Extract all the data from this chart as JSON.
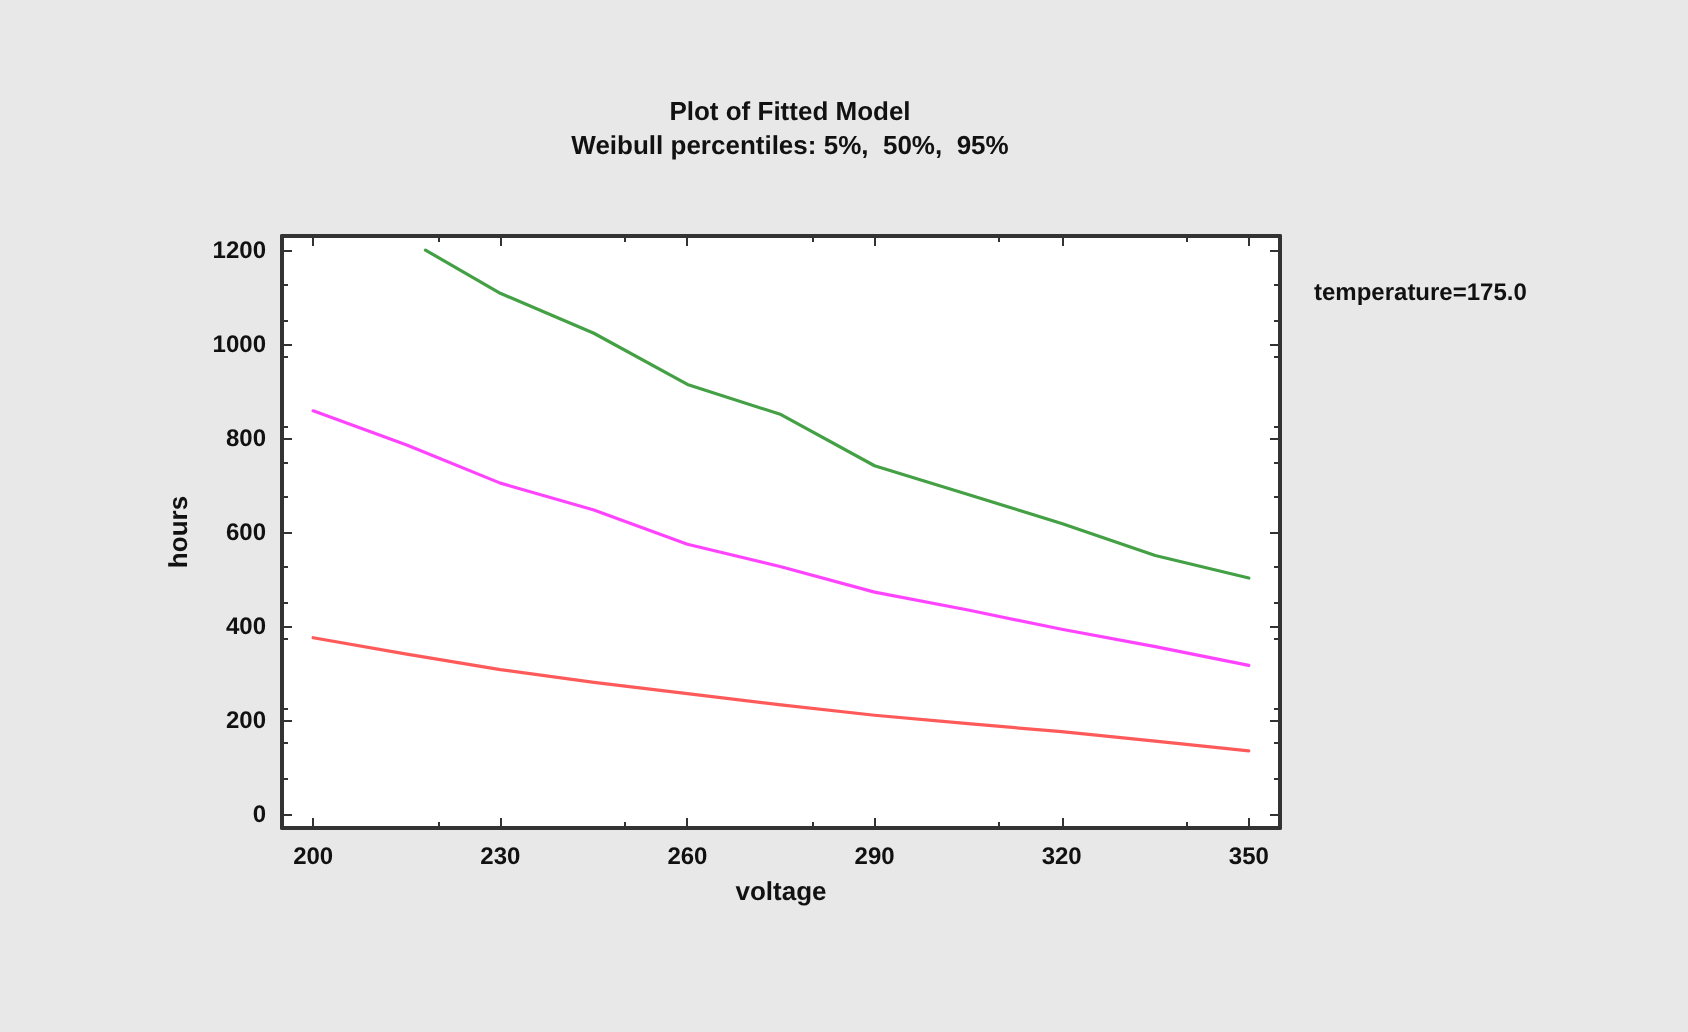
{
  "chart_data": {
    "type": "line",
    "title": "Plot of Fitted Model",
    "subtitle": "Weibull percentiles: 5%,  50%,  95%",
    "xlabel": "voltage",
    "ylabel": "hours",
    "annotations": [
      "temperature=175.0"
    ],
    "xlim": [
      195,
      355
    ],
    "xticks": [
      200,
      230,
      260,
      290,
      320,
      350
    ],
    "ylim": [
      -30,
      1230
    ],
    "yticks": [
      0,
      200,
      400,
      600,
      800,
      1000,
      1200
    ],
    "grid": false,
    "marker": "none",
    "line_style": "solid",
    "series": [
      {
        "color": "#ff5a5a",
        "x": [
          200,
          215,
          230,
          245,
          260,
          275,
          290,
          305,
          320,
          335,
          350
        ],
        "values": [
          375,
          340,
          307,
          280,
          256,
          232,
          210,
          192,
          175,
          155,
          134
        ]
      },
      {
        "color": "#ff44ff",
        "x": [
          200,
          215,
          230,
          245,
          260,
          275,
          290,
          305,
          320,
          335,
          350
        ],
        "values": [
          858,
          785,
          704,
          647,
          574,
          526,
          472,
          434,
          393,
          356,
          316
        ]
      },
      {
        "color": "#44a044",
        "x": [
          218,
          230,
          245,
          260,
          275,
          290,
          305,
          320,
          335,
          350
        ],
        "values": [
          1200,
          1108,
          1023,
          914,
          850,
          741,
          680,
          618,
          550,
          502
        ]
      }
    ]
  }
}
